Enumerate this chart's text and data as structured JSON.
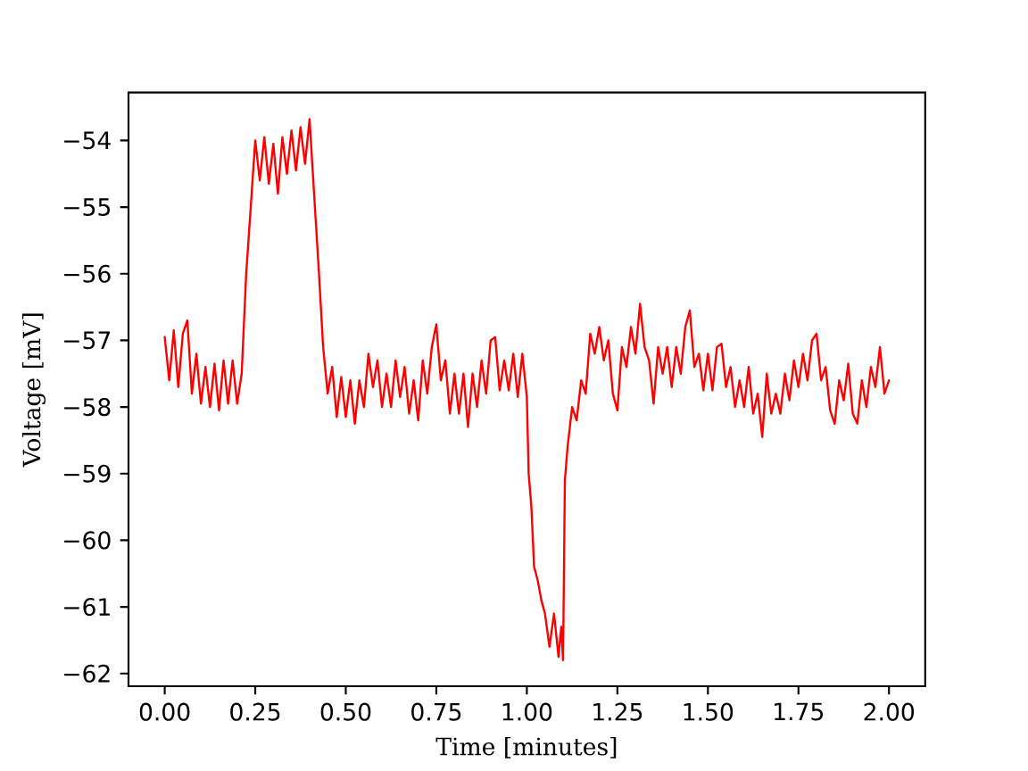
{
  "chart_data": {
    "type": "line",
    "xlabel": "Time [minutes]",
    "ylabel": "Voltage [mV]",
    "color": "#ff0000",
    "xlim": [
      -0.1,
      2.1
    ],
    "ylim": [
      -62.19,
      -53.28
    ],
    "xticks": [
      {
        "value": 0,
        "label": "0.00"
      },
      {
        "value": 0.25,
        "label": "0.25"
      },
      {
        "value": 0.5,
        "label": "0.50"
      },
      {
        "value": 0.75,
        "label": "0.75"
      },
      {
        "value": 1,
        "label": "1.00"
      },
      {
        "value": 1.25,
        "label": "1.25"
      },
      {
        "value": 1.5,
        "label": "1.50"
      },
      {
        "value": 1.75,
        "label": "1.75"
      },
      {
        "value": 2,
        "label": "2.00"
      }
    ],
    "yticks": [
      {
        "value": -62,
        "label": "−62"
      },
      {
        "value": -61,
        "label": "−61"
      },
      {
        "value": -60,
        "label": "−60"
      },
      {
        "value": -59,
        "label": "−59"
      },
      {
        "value": -58,
        "label": "−58"
      },
      {
        "value": -57,
        "label": "−57"
      },
      {
        "value": -56,
        "label": "−56"
      },
      {
        "value": -55,
        "label": "−55"
      },
      {
        "value": -54,
        "label": "−54"
      }
    ],
    "x": [
      0,
      0.0125,
      0.025,
      0.0375,
      0.05,
      0.0625,
      0.075,
      0.0875,
      0.1,
      0.1125,
      0.125,
      0.1375,
      0.15,
      0.1625,
      0.175,
      0.1875,
      0.2,
      0.2125,
      0.225,
      0.2375,
      0.25,
      0.2625,
      0.275,
      0.2875,
      0.3,
      0.3125,
      0.325,
      0.3375,
      0.35,
      0.3625,
      0.375,
      0.3875,
      0.4,
      0.4125,
      0.425,
      0.4375,
      0.45,
      0.4625,
      0.475,
      0.4875,
      0.5,
      0.5125,
      0.525,
      0.5375,
      0.55,
      0.5625,
      0.575,
      0.5875,
      0.6,
      0.6125,
      0.625,
      0.6375,
      0.65,
      0.6625,
      0.675,
      0.6875,
      0.7,
      0.7125,
      0.725,
      0.7375,
      0.75,
      0.7625,
      0.775,
      0.7875,
      0.8,
      0.8125,
      0.825,
      0.8375,
      0.85,
      0.8625,
      0.875,
      0.8875,
      0.9,
      0.9125,
      0.925,
      0.9375,
      0.95,
      0.9625,
      0.975,
      0.9875,
      1.0,
      1.005,
      1.0125,
      1.02,
      1.03,
      1.04,
      1.05,
      1.0625,
      1.075,
      1.0875,
      1.095,
      1.1,
      1.105,
      1.1125,
      1.125,
      1.1375,
      1.15,
      1.1625,
      1.175,
      1.1875,
      1.2,
      1.2125,
      1.225,
      1.2375,
      1.25,
      1.2625,
      1.275,
      1.2875,
      1.3,
      1.3125,
      1.325,
      1.3375,
      1.35,
      1.3625,
      1.375,
      1.3875,
      1.4,
      1.4125,
      1.425,
      1.4375,
      1.45,
      1.4625,
      1.475,
      1.4875,
      1.5,
      1.5125,
      1.525,
      1.5375,
      1.55,
      1.5625,
      1.575,
      1.5875,
      1.6,
      1.6125,
      1.625,
      1.6375,
      1.65,
      1.6625,
      1.675,
      1.6875,
      1.7,
      1.7125,
      1.725,
      1.7375,
      1.75,
      1.7625,
      1.775,
      1.7875,
      1.8,
      1.8125,
      1.825,
      1.8375,
      1.85,
      1.8625,
      1.875,
      1.8875,
      1.9,
      1.9125,
      1.925,
      1.9375,
      1.95,
      1.9625,
      1.975,
      1.9875,
      2.0
    ],
    "values": [
      -56.95,
      -57.6,
      -56.85,
      -57.7,
      -56.9,
      -56.7,
      -57.8,
      -57.2,
      -57.95,
      -57.4,
      -58.0,
      -57.35,
      -58.05,
      -57.3,
      -57.95,
      -57.3,
      -57.95,
      -57.5,
      -56.0,
      -55.0,
      -54.0,
      -54.6,
      -53.95,
      -54.65,
      -54.05,
      -54.8,
      -53.95,
      -54.5,
      -53.85,
      -54.45,
      -53.8,
      -54.35,
      -53.68,
      -54.8,
      -55.9,
      -57.1,
      -57.8,
      -57.4,
      -58.15,
      -57.55,
      -58.15,
      -57.6,
      -58.25,
      -57.6,
      -58.0,
      -57.2,
      -57.7,
      -57.3,
      -58.0,
      -57.5,
      -58.0,
      -57.3,
      -57.85,
      -57.4,
      -58.1,
      -57.6,
      -58.2,
      -57.3,
      -57.8,
      -57.1,
      -56.76,
      -57.6,
      -57.3,
      -58.1,
      -57.5,
      -58.1,
      -57.5,
      -58.3,
      -57.5,
      -58.0,
      -57.3,
      -57.8,
      -57.0,
      -56.95,
      -57.75,
      -57.3,
      -57.75,
      -57.2,
      -57.85,
      -57.2,
      -57.85,
      -59.0,
      -59.5,
      -60.4,
      -60.6,
      -60.9,
      -61.1,
      -61.6,
      -61.1,
      -61.75,
      -61.3,
      -61.8,
      -59.1,
      -58.6,
      -58.0,
      -58.2,
      -57.6,
      -57.8,
      -56.9,
      -57.2,
      -56.8,
      -57.3,
      -57.0,
      -57.8,
      -58.05,
      -57.1,
      -57.4,
      -56.8,
      -57.2,
      -56.45,
      -57.1,
      -57.3,
      -57.95,
      -57.1,
      -57.5,
      -57.1,
      -57.7,
      -57.1,
      -57.5,
      -56.8,
      -56.55,
      -57.4,
      -57.2,
      -57.75,
      -57.2,
      -57.75,
      -57.1,
      -57.05,
      -57.7,
      -57.4,
      -58.0,
      -57.6,
      -58.0,
      -57.4,
      -58.1,
      -57.8,
      -58.45,
      -57.5,
      -58.1,
      -57.8,
      -58.1,
      -57.5,
      -57.9,
      -57.3,
      -57.7,
      -57.2,
      -57.6,
      -57.0,
      -56.9,
      -57.6,
      -57.4,
      -58.05,
      -58.25,
      -57.6,
      -57.9,
      -57.35,
      -58.1,
      -58.25,
      -57.6,
      -58.0,
      -57.4,
      -57.7,
      -57.1,
      -57.8,
      -57.6
    ]
  }
}
